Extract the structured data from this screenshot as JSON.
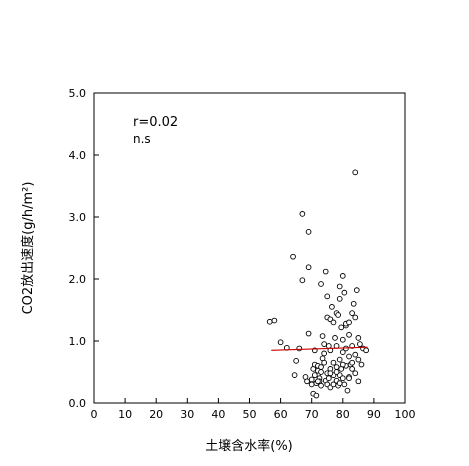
{
  "chart_data": {
    "type": "scatter",
    "xlabel": "土壌含水率(%)",
    "ylabel": "CO2放出速度(g/h/m²)",
    "xlim": [
      0,
      100
    ],
    "ylim": [
      0,
      5.0
    ],
    "xticks": [
      "0",
      "10",
      "20",
      "30",
      "40",
      "50",
      "60",
      "70",
      "80",
      "90",
      "100"
    ],
    "yticks": [
      "0.0",
      "1.0",
      "2.0",
      "3.0",
      "4.0",
      "5.0"
    ],
    "grid": false,
    "marker": "open-circle",
    "marker_color": "#000000",
    "annotations": [
      "r=0.02",
      "n.s"
    ],
    "trend_line": {
      "x": [
        57,
        88
      ],
      "y": [
        0.85,
        0.9
      ],
      "color": "#cc0000"
    },
    "points": [
      [
        56.5,
        1.31
      ],
      [
        58,
        1.33
      ],
      [
        60,
        0.98
      ],
      [
        62,
        0.89
      ],
      [
        64,
        2.36
      ],
      [
        64.5,
        0.45
      ],
      [
        65,
        0.68
      ],
      [
        66,
        0.88
      ],
      [
        67,
        1.98
      ],
      [
        67,
        3.05
      ],
      [
        68,
        0.42
      ],
      [
        68.5,
        0.35
      ],
      [
        69,
        2.19
      ],
      [
        69,
        1.12
      ],
      [
        69,
        2.76
      ],
      [
        70,
        0.38
      ],
      [
        70,
        0.3
      ],
      [
        70.5,
        0.55
      ],
      [
        70.5,
        0.15
      ],
      [
        71,
        0.62
      ],
      [
        71,
        0.85
      ],
      [
        71.5,
        0.32
      ],
      [
        71.5,
        0.12
      ],
      [
        72,
        0.45
      ],
      [
        72,
        0.52
      ],
      [
        72,
        0.6
      ],
      [
        72.5,
        0.4
      ],
      [
        72.5,
        0.35
      ],
      [
        73,
        0.28
      ],
      [
        73,
        0.5
      ],
      [
        73,
        1.92
      ],
      [
        73.5,
        1.08
      ],
      [
        73.5,
        0.72
      ],
      [
        74,
        0.95
      ],
      [
        74,
        0.8
      ],
      [
        74,
        0.65
      ],
      [
        74.5,
        2.12
      ],
      [
        74.5,
        0.36
      ],
      [
        75,
        1.72
      ],
      [
        75,
        0.48
      ],
      [
        75,
        0.3
      ],
      [
        75,
        1.38
      ],
      [
        75.5,
        0.92
      ],
      [
        75.5,
        0.4
      ],
      [
        76,
        1.35
      ],
      [
        76,
        0.55
      ],
      [
        76,
        0.25
      ],
      [
        76,
        0.85
      ],
      [
        76.5,
        1.55
      ],
      [
        77,
        1.3
      ],
      [
        77,
        0.45
      ],
      [
        77,
        0.3
      ],
      [
        77,
        0.65
      ],
      [
        77.5,
        1.05
      ],
      [
        78,
        0.36
      ],
      [
        78,
        0.58
      ],
      [
        78,
        0.92
      ],
      [
        78,
        1.45
      ],
      [
        78.5,
        1.42
      ],
      [
        78.5,
        0.28
      ],
      [
        79,
        1.68
      ],
      [
        79,
        0.45
      ],
      [
        79,
        1.88
      ],
      [
        79,
        0.7
      ],
      [
        79.5,
        1.22
      ],
      [
        79.5,
        0.55
      ],
      [
        80,
        2.05
      ],
      [
        80,
        0.4
      ],
      [
        80,
        0.82
      ],
      [
        80,
        1.02
      ],
      [
        80.5,
        1.78
      ],
      [
        80.5,
        0.3
      ],
      [
        81,
        1.25
      ],
      [
        81,
        0.6
      ],
      [
        81,
        0.88
      ],
      [
        81,
        1.28
      ],
      [
        81.5,
        0.2
      ],
      [
        82,
        0.42
      ],
      [
        82,
        0.75
      ],
      [
        82,
        1.1
      ],
      [
        82,
        1.3
      ],
      [
        82.5,
        0.62
      ],
      [
        83,
        0.92
      ],
      [
        83,
        1.45
      ],
      [
        83,
        0.55
      ],
      [
        83.5,
        1.6
      ],
      [
        84,
        1.38
      ],
      [
        84,
        0.78
      ],
      [
        84,
        3.72
      ],
      [
        84.5,
        1.82
      ],
      [
        85,
        1.05
      ],
      [
        85,
        0.7
      ],
      [
        85.5,
        0.95
      ],
      [
        86,
        0.62
      ],
      [
        86.5,
        0.88
      ],
      [
        87.5,
        0.85
      ],
      [
        71,
        0.45
      ],
      [
        72,
        0.35
      ],
      [
        73,
        0.58
      ],
      [
        76,
        0.48
      ],
      [
        78,
        0.5
      ],
      [
        79,
        0.32
      ],
      [
        80,
        0.62
      ],
      [
        82,
        0.4
      ],
      [
        83,
        0.65
      ],
      [
        84,
        0.48
      ],
      [
        85,
        0.35
      ]
    ]
  }
}
